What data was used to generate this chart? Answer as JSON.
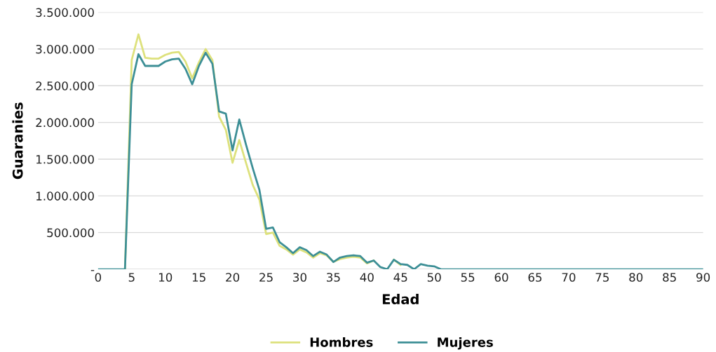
{
  "chart_data": {
    "type": "line",
    "xlabel": "Edad",
    "ylabel": "Guaranies",
    "x": [
      0,
      1,
      2,
      3,
      4,
      5,
      6,
      7,
      8,
      9,
      10,
      11,
      12,
      13,
      14,
      15,
      16,
      17,
      18,
      19,
      20,
      21,
      22,
      23,
      24,
      25,
      26,
      27,
      28,
      29,
      30,
      31,
      32,
      33,
      34,
      35,
      36,
      37,
      38,
      39,
      40,
      41,
      42,
      43,
      44,
      45,
      46,
      47,
      48,
      49,
      50,
      51,
      52,
      53,
      54,
      55,
      56,
      57,
      58,
      59,
      60,
      61,
      62,
      63,
      64,
      65,
      66,
      67,
      68,
      69,
      70,
      71,
      72,
      73,
      74,
      75,
      76,
      77,
      78,
      79,
      80,
      81,
      82,
      83,
      84,
      85,
      86,
      87,
      88,
      89,
      90
    ],
    "series": [
      {
        "name": "Hombres",
        "color": "#dde17c",
        "values": [
          null,
          null,
          null,
          null,
          0,
          2850000,
          3200000,
          2880000,
          2870000,
          2870000,
          2920000,
          2950000,
          2960000,
          2830000,
          2600000,
          2820000,
          3000000,
          2850000,
          2080000,
          1900000,
          1450000,
          1760000,
          1450000,
          1150000,
          950000,
          480000,
          500000,
          320000,
          270000,
          200000,
          270000,
          230000,
          160000,
          220000,
          190000,
          100000,
          140000,
          160000,
          170000,
          160000,
          80000,
          120000,
          null,
          null,
          130000,
          60000,
          null,
          null,
          null,
          null,
          null,
          null,
          null,
          null,
          null,
          null,
          null,
          null,
          null,
          null,
          null,
          null,
          null,
          null,
          null,
          null,
          null,
          null,
          null,
          null,
          null,
          null,
          null,
          null,
          null,
          null,
          null,
          null,
          null,
          null,
          null,
          null,
          null,
          null,
          null,
          null,
          null,
          null,
          null,
          null,
          null
        ]
      },
      {
        "name": "Mujeres",
        "color": "#3d8f96",
        "values": [
          0,
          0,
          0,
          0,
          0,
          2520000,
          2930000,
          2770000,
          2770000,
          2770000,
          2830000,
          2860000,
          2870000,
          2730000,
          2520000,
          2770000,
          2950000,
          2800000,
          2150000,
          2120000,
          1620000,
          2040000,
          1700000,
          1380000,
          1080000,
          550000,
          570000,
          370000,
          300000,
          220000,
          300000,
          260000,
          180000,
          240000,
          200000,
          100000,
          160000,
          180000,
          190000,
          180000,
          90000,
          120000,
          30000,
          0,
          130000,
          70000,
          60000,
          0,
          70000,
          50000,
          40000,
          0,
          0,
          0,
          0,
          0,
          0,
          0,
          0,
          0,
          0,
          0,
          0,
          0,
          0,
          0,
          0,
          0,
          0,
          0,
          0,
          0,
          0,
          0,
          0,
          0,
          0,
          0,
          0,
          0,
          0,
          0,
          0,
          0,
          0,
          0,
          0,
          0,
          0,
          0,
          0
        ]
      }
    ],
    "xlim": [
      0,
      90
    ],
    "xticks": [
      0,
      5,
      10,
      15,
      20,
      25,
      30,
      35,
      40,
      45,
      50,
      55,
      60,
      65,
      70,
      75,
      80,
      85,
      90
    ],
    "ylim": [
      0,
      3500000
    ],
    "yticks": [
      {
        "value": 0,
        "label": "-"
      },
      {
        "value": 500000,
        "label": "500.000"
      },
      {
        "value": 1000000,
        "label": "1.000.000"
      },
      {
        "value": 1500000,
        "label": "1.500.000"
      },
      {
        "value": 2000000,
        "label": "2.000.000"
      },
      {
        "value": 2500000,
        "label": "2.500.000"
      },
      {
        "value": 3000000,
        "label": "3.000.000"
      },
      {
        "value": 3500000,
        "label": "3.500.000"
      }
    ],
    "grid": "y",
    "legend": "bottom",
    "marker": "none",
    "line_style": "solid"
  }
}
